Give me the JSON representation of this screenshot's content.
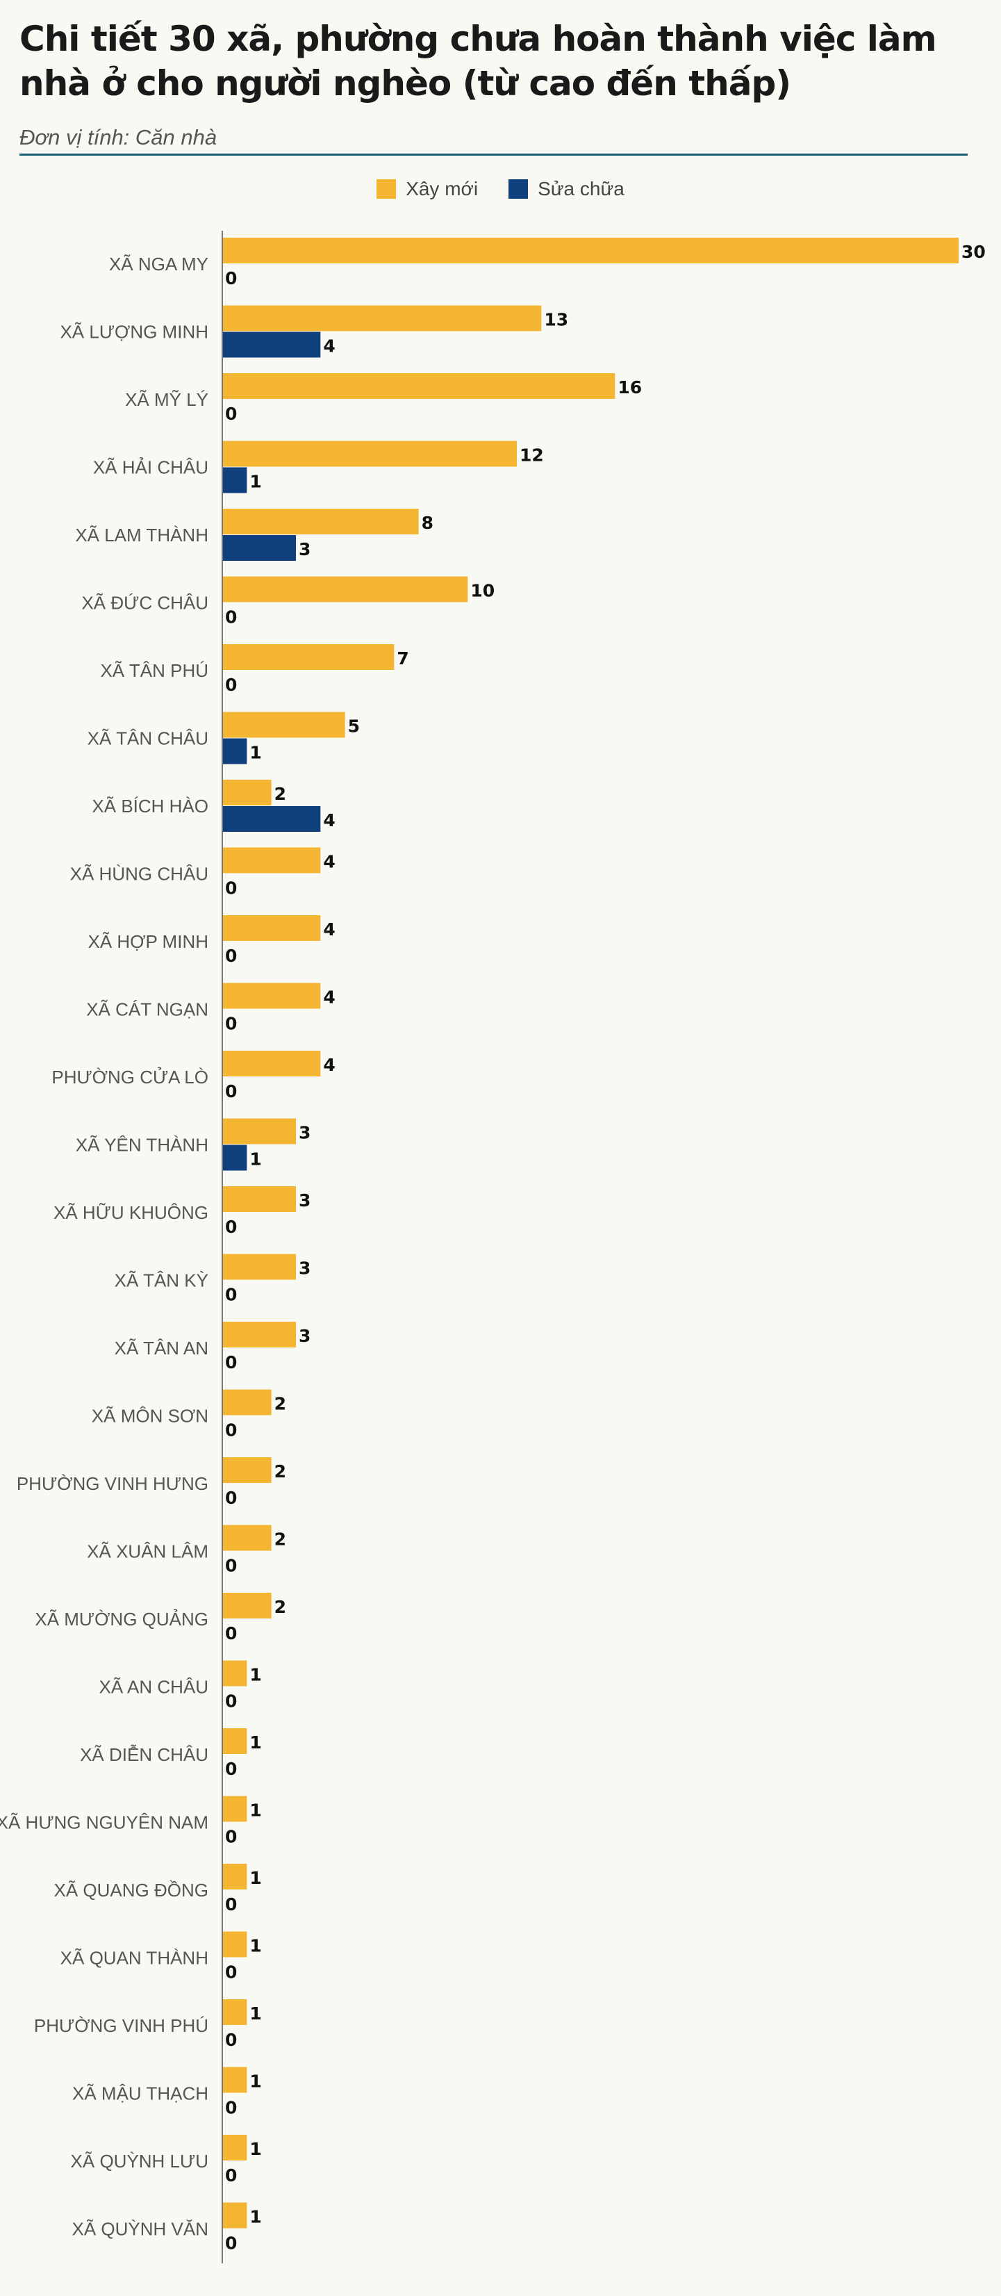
{
  "header": {
    "title": "Chi tiết 30 xã, phường chưa hoàn thành việc làm nhà ở cho người nghèo (từ cao đến thấp)",
    "subtitle": "Đơn vị tính: Căn nhà"
  },
  "colors": {
    "series1": "#f4b533",
    "series2": "#0f3f7d",
    "axis": "#777777",
    "rule": "#1f5f73"
  },
  "chart_data": {
    "type": "bar",
    "orientation": "horizontal",
    "title": "Chi tiết 30 xã, phường chưa hoàn thành việc làm nhà ở cho người nghèo (từ cao đến thấp)",
    "subtitle": "Đơn vị tính: Căn nhà",
    "xlim": [
      0,
      30
    ],
    "grid": false,
    "legend_position": "top-center",
    "categories": [
      "XÃ NGA MY",
      "XÃ LƯỢNG MINH",
      "XÃ MỸ LÝ",
      "XÃ HẢI CHÂU",
      "XÃ LAM THÀNH",
      "XÃ ĐỨC CHÂU",
      "XÃ TÂN PHÚ",
      "XÃ TÂN CHÂU",
      "XÃ BÍCH HÀO",
      "XÃ HÙNG CHÂU",
      "XÃ HỢP MINH",
      "XÃ CÁT NGẠN",
      "PHƯỜNG CỬA LÒ",
      "XÃ YÊN THÀNH",
      "XÃ HỮU KHUÔNG",
      "XÃ TÂN KỲ",
      "XÃ TÂN AN",
      "XÃ MÔN SƠN",
      "PHƯỜNG VINH HƯNG",
      "XÃ XUÂN LÂM",
      "XÃ MƯỜNG QUẢNG",
      "XÃ AN CHÂU",
      "XÃ DIỄN CHÂU",
      "XÃ HƯNG NGUYÊN NAM",
      "XÃ QUANG ĐỒNG",
      "XÃ QUAN THÀNH",
      "PHƯỜNG VINH PHÚ",
      "XÃ MẬU THẠCH",
      "XÃ QUỲNH LƯU",
      "XÃ QUỲNH VĂN"
    ],
    "series": [
      {
        "name": "Xây mới",
        "color": "#f4b533",
        "values": [
          30,
          13,
          16,
          12,
          8,
          10,
          7,
          5,
          2,
          4,
          4,
          4,
          4,
          3,
          3,
          3,
          3,
          2,
          2,
          2,
          2,
          1,
          1,
          1,
          1,
          1,
          1,
          1,
          1,
          1
        ]
      },
      {
        "name": "Sửa chữa",
        "color": "#0f3f7d",
        "values": [
          0,
          4,
          0,
          1,
          3,
          0,
          0,
          1,
          4,
          0,
          0,
          0,
          0,
          1,
          0,
          0,
          0,
          0,
          0,
          0,
          0,
          0,
          0,
          0,
          0,
          0,
          0,
          0,
          0,
          0
        ]
      }
    ]
  }
}
